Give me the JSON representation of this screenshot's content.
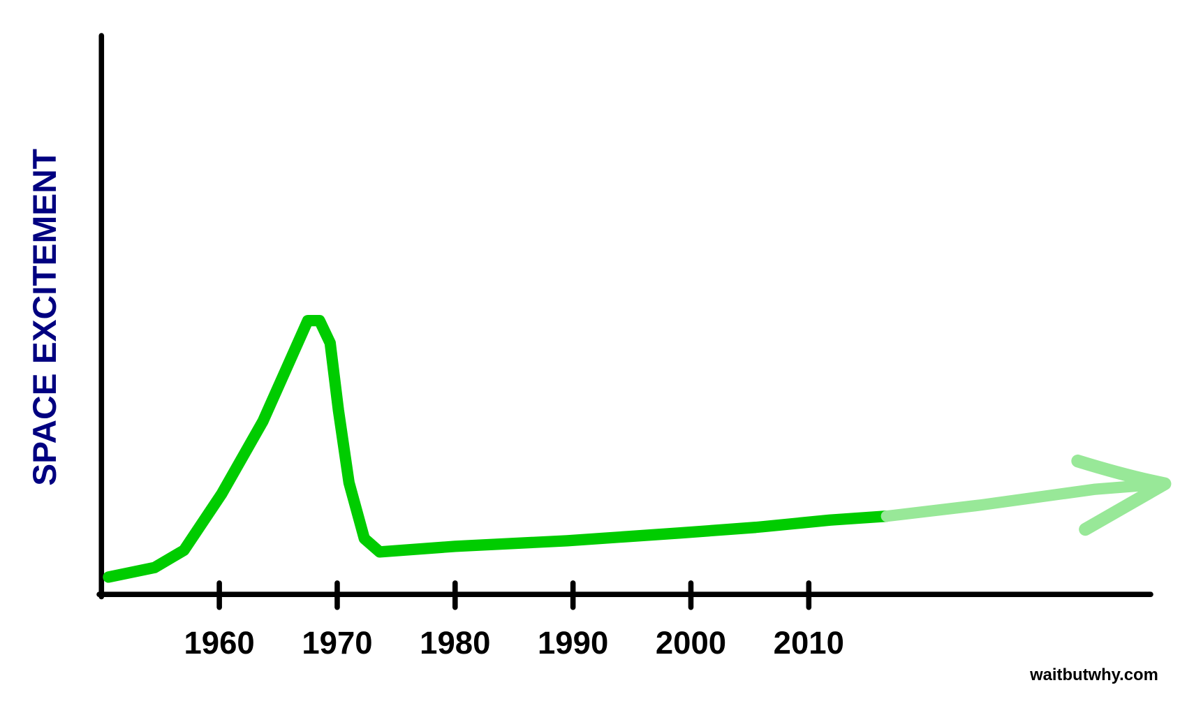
{
  "chart_data": {
    "type": "line",
    "y_label": "SPACE EXCITEMENT",
    "watermark": "waitbutwhy.com",
    "xlim": [
      1950,
      2039
    ],
    "ylim": [
      0,
      100
    ],
    "xticks": [
      1960,
      1970,
      1980,
      1990,
      2000,
      2010
    ],
    "series": [
      {
        "color": "#00cc00",
        "x": [
          1950.6,
          1954.5,
          1957,
          1960.2,
          1963.7,
          1965.6,
          1967.5,
          1968.5,
          1969.4,
          1970.1,
          1971,
          1972.3,
          1973.6,
          1980,
          1989.5,
          1999.1,
          2005.5,
          2011.8,
          2016.6
        ],
        "values": [
          3.1,
          4.8,
          7.9,
          18,
          31,
          40,
          49,
          49,
          45,
          33,
          20,
          10,
          7.6,
          8.6,
          9.6,
          11,
          12,
          13.3,
          14
        ]
      },
      {
        "color": "#98e898",
        "x": [
          2016.6,
          2024.6,
          2034.2,
          2040.2
        ],
        "values": [
          14,
          16,
          18.8,
          19.8
        ]
      }
    ]
  }
}
